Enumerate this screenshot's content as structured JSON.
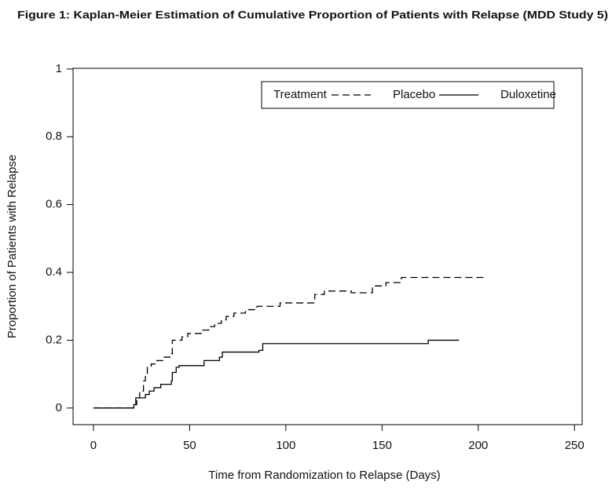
{
  "chart_data": {
    "type": "step",
    "title": "Figure 1: Kaplan-Meier Estimation of Cumulative Proportion of Patients with Relapse (MDD Study 5)",
    "xlabel": "Time from Randomization to Relapse (Days)",
    "ylabel": "Proportion of Patients with Relapse",
    "legend_title": "Treatment",
    "xlim": [
      -10.6,
      254
    ],
    "ylim": [
      -0.049,
      1.002
    ],
    "xticks": [
      0,
      50,
      100,
      150,
      200,
      250
    ],
    "yticks": [
      0,
      0.2,
      0.4,
      0.6,
      0.8,
      1
    ],
    "series": [
      {
        "name": "Placebo",
        "color": "#000000",
        "dashed": true,
        "x": [
          0,
          21,
          22.5,
          24,
          26,
          27,
          28,
          30,
          33,
          36,
          40.5,
          41,
          46,
          49,
          56,
          60,
          63,
          66.5,
          69,
          73,
          79,
          85,
          97,
          115,
          120,
          134,
          145,
          152,
          160,
          203
        ],
        "values": [
          0,
          0.01,
          0.03,
          0.05,
          0.08,
          0.1,
          0.12,
          0.13,
          0.14,
          0.15,
          0.16,
          0.2,
          0.21,
          0.22,
          0.23,
          0.24,
          0.25,
          0.26,
          0.27,
          0.28,
          0.29,
          0.3,
          0.31,
          0.335,
          0.345,
          0.34,
          0.36,
          0.37,
          0.385,
          0.385
        ]
      },
      {
        "name": "Duloxetine",
        "color": "#000000",
        "dashed": false,
        "x": [
          0,
          21,
          22,
          27,
          29,
          31.5,
          35,
          40.5,
          41,
          43,
          44.5,
          57.5,
          65.5,
          67,
          86,
          88,
          174,
          190
        ],
        "values": [
          0,
          0.01,
          0.03,
          0.04,
          0.05,
          0.06,
          0.07,
          0.08,
          0.105,
          0.12,
          0.125,
          0.14,
          0.15,
          0.165,
          0.17,
          0.19,
          0.2,
          0.2
        ]
      }
    ]
  }
}
